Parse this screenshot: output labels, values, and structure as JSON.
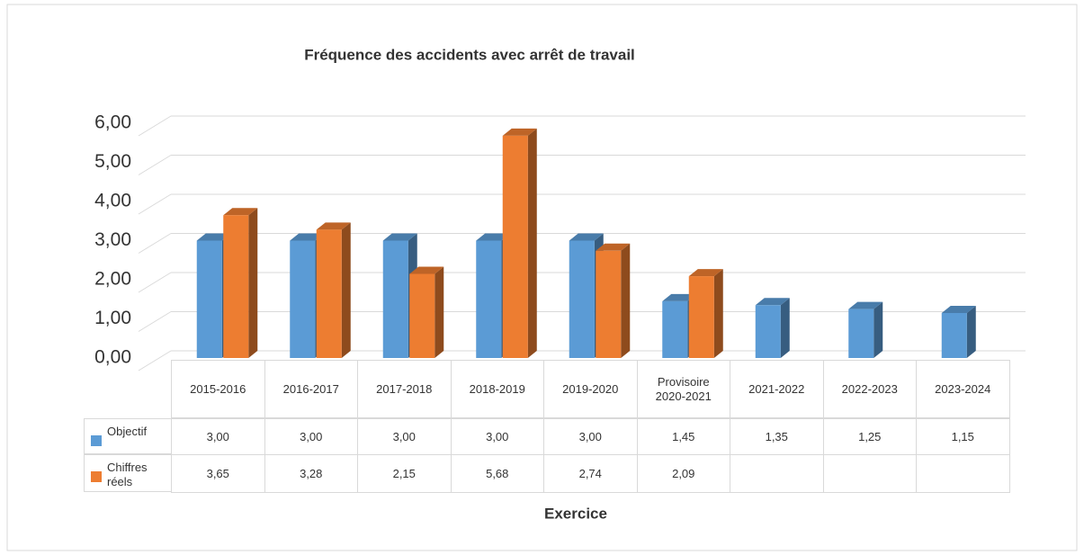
{
  "chart_data": {
    "type": "bar3d",
    "title": "Fréquence des accidents avec arrêt de travail",
    "x_label": "Exercice",
    "categories": [
      "2015-2016",
      "2016-2017",
      "2017-2018",
      "2018-2019",
      "2019-2020",
      "Provisoire 2020-2021",
      "2021-2022",
      "2022-2023",
      "2023-2024"
    ],
    "series": [
      {
        "name": "Objectif",
        "color": "#5b9bd5",
        "values": [
          3.0,
          3.0,
          3.0,
          3.0,
          3.0,
          1.45,
          1.35,
          1.25,
          1.15
        ],
        "value_labels": [
          "3,00",
          "3,00",
          "3,00",
          "3,00",
          "3,00",
          "1,45",
          "1,35",
          "1,25",
          "1,15"
        ]
      },
      {
        "name": "Chiffres réels",
        "color": "#ed7d31",
        "values": [
          3.65,
          3.28,
          2.15,
          5.68,
          2.74,
          2.09,
          null,
          null,
          null
        ],
        "value_labels": [
          "3,65",
          "3,28",
          "2,15",
          "5,68",
          "2,74",
          "2,09",
          null,
          null,
          null
        ]
      }
    ],
    "ylim": [
      0,
      6
    ],
    "yticks": [
      {
        "value": 0,
        "label": "0,00"
      },
      {
        "value": 1,
        "label": "1,00"
      },
      {
        "value": 2,
        "label": "2,00"
      },
      {
        "value": 3,
        "label": "3,00"
      },
      {
        "value": 4,
        "label": "4,00"
      },
      {
        "value": 5,
        "label": "5,00"
      },
      {
        "value": 6,
        "label": "6,00"
      }
    ],
    "grid": true,
    "data_table": true
  }
}
